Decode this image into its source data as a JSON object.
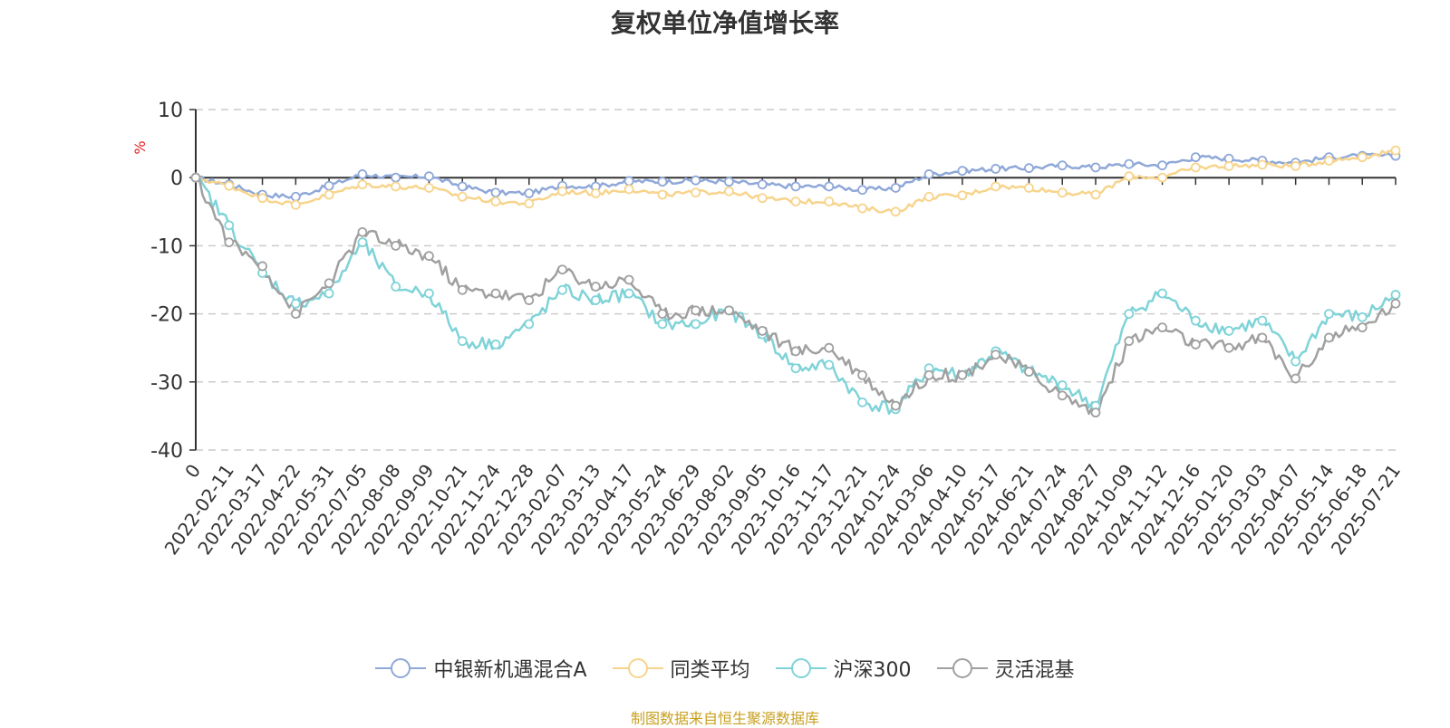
{
  "chart_data": {
    "type": "line",
    "title": "复权单位净值增长率",
    "ylabel": "%",
    "ylim": [
      -40,
      10
    ],
    "yticks": [
      10,
      0,
      -10,
      -20,
      -30,
      -40
    ],
    "grid": true,
    "legend_position": "bottom",
    "x_tick_labels": [
      "0",
      "2022-02-11",
      "2022-03-17",
      "2022-04-22",
      "2022-05-31",
      "2022-07-05",
      "2022-08-08",
      "2022-09-09",
      "2022-10-21",
      "2022-11-24",
      "2022-12-28",
      "2023-02-07",
      "2023-03-13",
      "2023-04-17",
      "2023-05-24",
      "2023-06-29",
      "2023-08-02",
      "2023-09-05",
      "2023-10-16",
      "2023-11-17",
      "2023-12-21",
      "2024-01-24",
      "2024-03-06",
      "2024-04-10",
      "2024-05-17",
      "2024-06-21",
      "2024-07-24",
      "2024-08-27",
      "2024-10-09",
      "2024-11-12",
      "2024-12-16",
      "2025-01-20",
      "2025-03-03",
      "2025-04-07",
      "2025-05-14",
      "2025-06-18",
      "2025-07-21"
    ],
    "series": [
      {
        "name": "中银新机遇混合A",
        "color": "#8fa8d8",
        "values": [
          0,
          -1,
          -2.5,
          -2.8,
          -1.2,
          0.5,
          0,
          0.2,
          -1.3,
          -2.2,
          -2.3,
          -1.2,
          -1.3,
          -0.5,
          -0.6,
          -0.4,
          -0.6,
          -1,
          -1.3,
          -1.3,
          -1.8,
          -1.5,
          0.5,
          1,
          1.3,
          1.4,
          1.8,
          1.5,
          2,
          1.8,
          3,
          2.8,
          2.5,
          2.2,
          3,
          3.2,
          3.2
        ]
      },
      {
        "name": "同类平均",
        "color": "#f7d48c",
        "values": [
          0,
          -1.2,
          -3,
          -4,
          -2.5,
          -1,
          -1.3,
          -1.5,
          -2.8,
          -3.5,
          -3.8,
          -2,
          -2.3,
          -1.7,
          -2.5,
          -2.2,
          -2,
          -3,
          -3.5,
          -3.5,
          -4.5,
          -5,
          -2.8,
          -2.6,
          -1.3,
          -1.5,
          -2.2,
          -2.5,
          0.2,
          0,
          1.5,
          1.7,
          1.9,
          1.7,
          2.5,
          3,
          4
        ]
      },
      {
        "name": "沪深300",
        "color": "#7fd3d8",
        "values": [
          0,
          -7,
          -14,
          -18.5,
          -17,
          -9.5,
          -16,
          -17,
          -24,
          -24.5,
          -21.5,
          -16.5,
          -18,
          -17,
          -21.5,
          -21.5,
          -19.5,
          -23,
          -28,
          -27.5,
          -33,
          -34,
          -28,
          -29,
          -25.5,
          -28.5,
          -30.5,
          -33.5,
          -20,
          -17,
          -21,
          -22.5,
          -21,
          -27,
          -20,
          -20.5,
          -17.2
        ]
      },
      {
        "name": "灵活混基",
        "color": "#a0a0a0",
        "values": [
          0,
          -9.5,
          -13,
          -20,
          -15.5,
          -8,
          -10,
          -11.5,
          -16.5,
          -17,
          -18,
          -13.5,
          -16,
          -15,
          -20,
          -19.5,
          -19.5,
          -22.5,
          -25.5,
          -25,
          -29,
          -33.5,
          -29,
          -29,
          -26,
          -28.5,
          -32,
          -34.5,
          -24,
          -22,
          -24.5,
          -25,
          -23.5,
          -29.5,
          -23.5,
          -22,
          -18.5
        ]
      }
    ]
  },
  "source_note": "制图数据来自恒生聚源数据库"
}
